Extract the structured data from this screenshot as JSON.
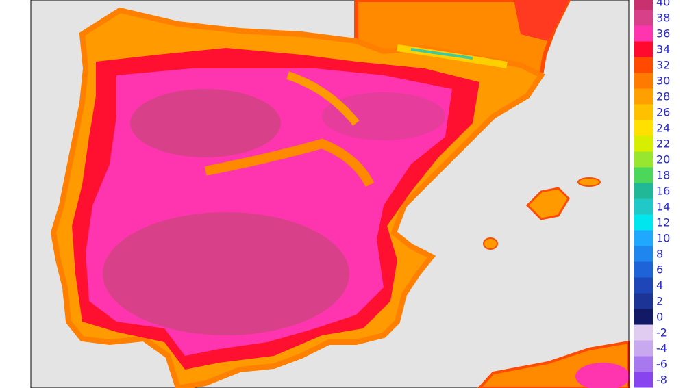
{
  "legend": {
    "entries": [
      {
        "label": "40",
        "color": "#c8306e"
      },
      {
        "label": "38",
        "color": "#d8418a"
      },
      {
        "label": "36",
        "color": "#ff35b0"
      },
      {
        "label": "34",
        "color": "#ff0a2e"
      },
      {
        "label": "32",
        "color": "#ff4a00"
      },
      {
        "label": "30",
        "color": "#ff7a00"
      },
      {
        "label": "28",
        "color": "#ffa000"
      },
      {
        "label": "26",
        "color": "#ffc000"
      },
      {
        "label": "24",
        "color": "#ffe000"
      },
      {
        "label": "22",
        "color": "#d8ee00"
      },
      {
        "label": "20",
        "color": "#99e630"
      },
      {
        "label": "18",
        "color": "#4cd65a"
      },
      {
        "label": "16",
        "color": "#20b896"
      },
      {
        "label": "14",
        "color": "#20c8c8"
      },
      {
        "label": "12",
        "color": "#00e6ee"
      },
      {
        "label": "10",
        "color": "#20a8ff"
      },
      {
        "label": "8",
        "color": "#1e86ee"
      },
      {
        "label": "6",
        "color": "#1e64d8"
      },
      {
        "label": "4",
        "color": "#1e46b8"
      },
      {
        "label": "2",
        "color": "#1c3496"
      },
      {
        "label": "0",
        "color": "#121a66"
      },
      {
        "label": "-2",
        "color": "#e0ccf0"
      },
      {
        "label": "-4",
        "color": "#c8a8ee"
      },
      {
        "label": "-6",
        "color": "#a878ee"
      },
      {
        "label": "-8",
        "color": "#8844ee"
      }
    ]
  }
}
